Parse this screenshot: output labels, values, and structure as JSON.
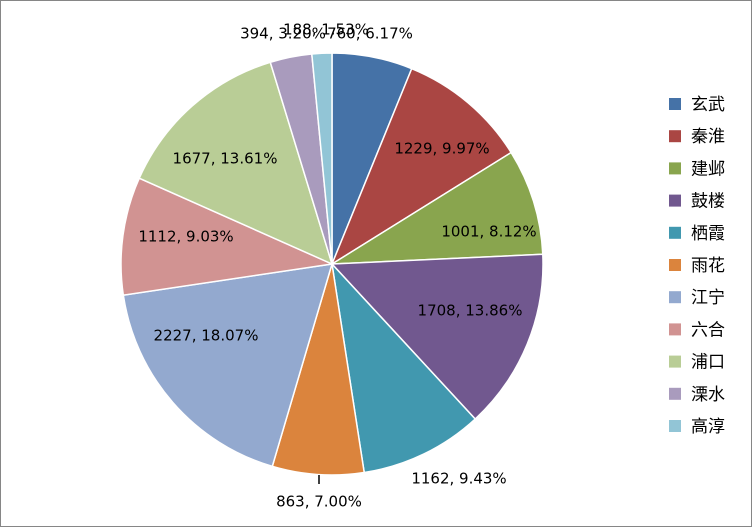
{
  "chart_data": {
    "type": "pie",
    "title": "",
    "start_angle_deg": 0,
    "direction": "clockwise",
    "legend_position": "right",
    "slices": [
      {
        "name": "玄武",
        "value": 760,
        "percent_label": "6.17%",
        "label": "760, 6.17%",
        "color": "#4572A7"
      },
      {
        "name": "秦淮",
        "value": 1229,
        "percent_label": "9.97%",
        "label": "1229, 9.97%",
        "color": "#AA4643"
      },
      {
        "name": "建邺",
        "value": 1001,
        "percent_label": "8.12%",
        "label": "1001, 8.12%",
        "color": "#89A54E"
      },
      {
        "name": "鼓楼",
        "value": 1708,
        "percent_label": "13.86%",
        "label": "1708, 13.86%",
        "color": "#71588F"
      },
      {
        "name": "栖霞",
        "value": 1162,
        "percent_label": "9.43%",
        "label": "1162, 9.43%",
        "color": "#4198AF"
      },
      {
        "name": "雨花",
        "value": 863,
        "percent_label": "7.00%",
        "label": "863, 7.00%",
        "color": "#DB843D"
      },
      {
        "name": "江宁",
        "value": 2227,
        "percent_label": "18.07%",
        "label": "2227, 18.07%",
        "color": "#93A9CF"
      },
      {
        "name": "六合",
        "value": 1112,
        "percent_label": "9.03%",
        "label": "1112, 9.03%",
        "color": "#D19392"
      },
      {
        "name": "浦口",
        "value": 1677,
        "percent_label": "13.61%",
        "label": "1677, 13.61%",
        "color": "#B9CD96"
      },
      {
        "name": "溧水",
        "value": 394,
        "percent_label": "3.20%",
        "label": "394, 3.20%",
        "color": "#A99BBD"
      },
      {
        "name": "高淳",
        "value": 188,
        "percent_label": "1.53%",
        "label": "188, 1.53%",
        "color": "#92C5D6"
      }
    ]
  }
}
